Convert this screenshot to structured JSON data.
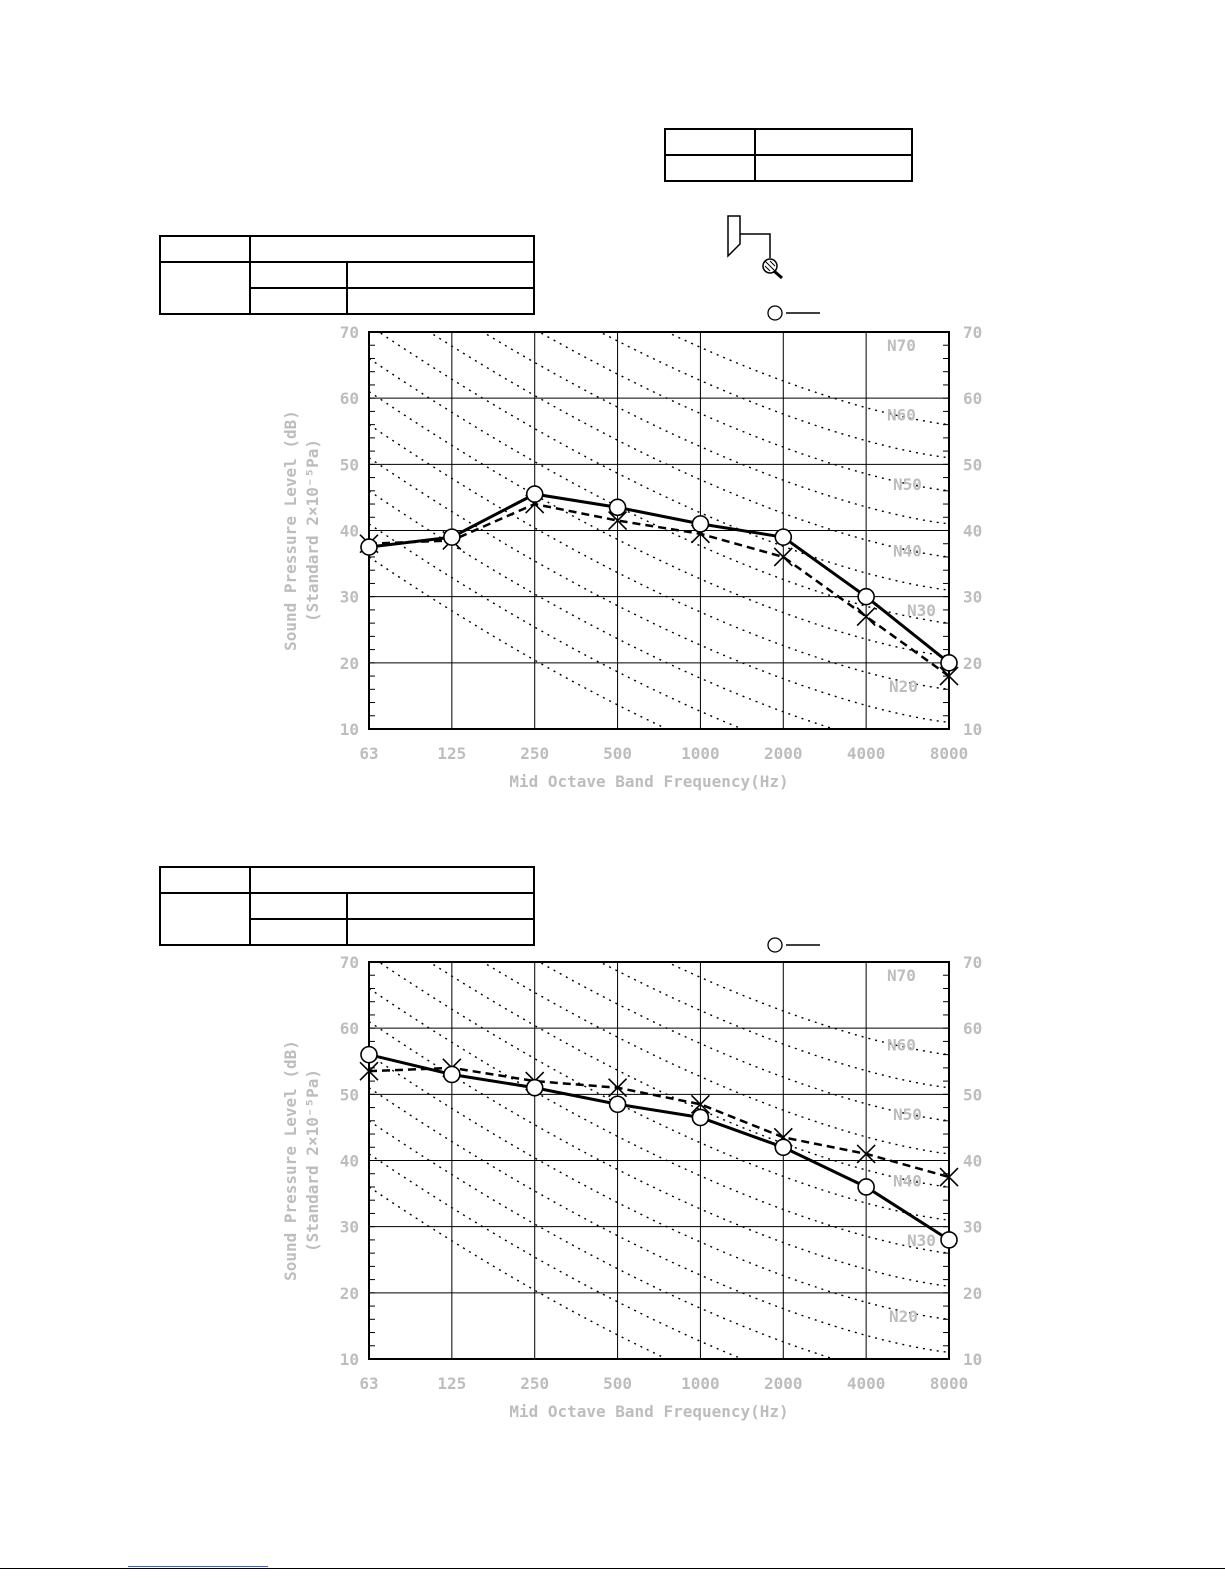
{
  "chart_data": [
    {
      "type": "line",
      "title": "",
      "xlabel": "Mid Octave Band Frequency(Hz)",
      "ylabel": "Sound Pressure Level (dB)",
      "ylabel2": "(Standard 2×10⁻⁵Pa)",
      "categories": [
        "63",
        "125",
        "250",
        "500",
        "1000",
        "2000",
        "4000",
        "8000"
      ],
      "ylim": [
        10,
        70
      ],
      "yticks": [
        "10",
        "20",
        "30",
        "40",
        "50",
        "60",
        "70"
      ],
      "nc_labels": [
        "N70",
        "N60",
        "N50",
        "N40",
        "N30",
        "N20"
      ],
      "series": [
        {
          "style": "solid-circle",
          "values": [
            37.5,
            39,
            45.5,
            43.5,
            41,
            39,
            30,
            20
          ]
        },
        {
          "style": "dashed-cross",
          "values": [
            38,
            38.5,
            44,
            41.5,
            39.5,
            36,
            27,
            18
          ]
        }
      ],
      "grid": true
    },
    {
      "type": "line",
      "title": "",
      "xlabel": "Mid Octave Band Frequency(Hz)",
      "ylabel": "Sound Pressure Level (dB)",
      "ylabel2": "(Standard 2×10⁻⁵Pa)",
      "categories": [
        "63",
        "125",
        "250",
        "500",
        "1000",
        "2000",
        "4000",
        "8000"
      ],
      "ylim": [
        10,
        70
      ],
      "yticks": [
        "10",
        "20",
        "30",
        "40",
        "50",
        "60",
        "70"
      ],
      "nc_labels": [
        "N70",
        "N60",
        "N50",
        "N40",
        "N30",
        "N20"
      ],
      "series": [
        {
          "style": "solid-circle",
          "values": [
            56,
            53,
            51,
            48.5,
            46.5,
            42,
            36,
            28
          ]
        },
        {
          "style": "dashed-cross",
          "values": [
            53.5,
            54,
            52,
            51,
            48.5,
            43.5,
            41,
            37.5
          ]
        }
      ],
      "grid": true
    }
  ]
}
